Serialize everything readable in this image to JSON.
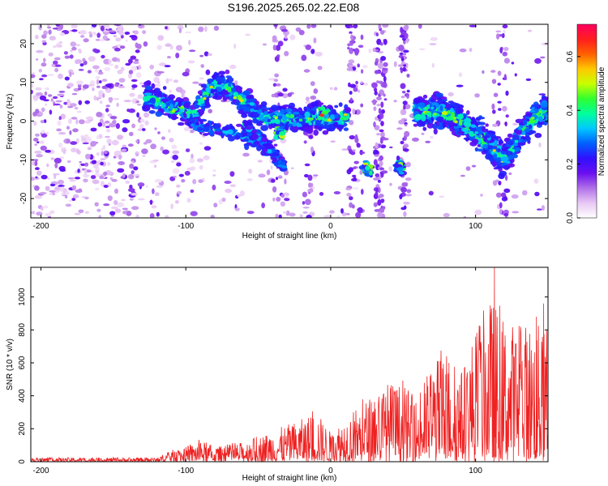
{
  "title": "S196.2025.265.02.22.E08",
  "chart_data": [
    {
      "type": "heatmap",
      "name": "frequency-vs-height",
      "xlabel": "Height of straight line (km)",
      "ylabel": "Frequency (Hz)",
      "xlim": [
        -207,
        150
      ],
      "ylim": [
        -25,
        25
      ],
      "xticks": [
        -200,
        -100,
        0,
        100
      ],
      "yticks": [
        -20,
        -10,
        0,
        10,
        20
      ],
      "colorbar": {
        "label": "Normalized spectral amplitude",
        "range": [
          0,
          0.72
        ],
        "ticks": [
          0.0,
          0.2,
          0.4,
          0.6
        ],
        "colors": [
          "#ffffff",
          "#e8c8f4",
          "#b070e8",
          "#6a0ff0",
          "#3010ff",
          "#0060ff",
          "#00c8ff",
          "#00ff9c",
          "#30ff30",
          "#c8ff00",
          "#ffc800",
          "#ff6000",
          "#ff1e1e",
          "#ff0060"
        ]
      },
      "ridge": [
        [
          -125,
          6
        ],
        [
          -110,
          3.5
        ],
        [
          -95,
          2
        ],
        [
          -85,
          7
        ],
        [
          -80,
          10
        ],
        [
          -70,
          8
        ],
        [
          -60,
          5
        ],
        [
          -50,
          1.5
        ],
        [
          -40,
          0.5
        ],
        [
          -30,
          1
        ],
        [
          -20,
          0
        ],
        [
          -10,
          1
        ],
        [
          0,
          0.5
        ],
        [
          10,
          1
        ],
        [
          60,
          2
        ],
        [
          70,
          2.5
        ],
        [
          80,
          2
        ],
        [
          90,
          0
        ],
        [
          100,
          -3
        ],
        [
          110,
          -6
        ],
        [
          120,
          -10
        ],
        [
          130,
          -4
        ],
        [
          140,
          1
        ],
        [
          148,
          3
        ]
      ],
      "branches": [
        [
          [
            -95,
            -1
          ],
          [
            -80,
            -2
          ],
          [
            -65,
            -3
          ],
          [
            -50,
            -6
          ],
          [
            -35,
            -10
          ]
        ],
        [
          [
            -60,
            -1
          ],
          [
            -50,
            -4
          ],
          [
            -40,
            -8
          ],
          [
            -32,
            -12
          ]
        ]
      ],
      "clusters": [
        {
          "x": 25,
          "y": -12,
          "label": ""
        },
        {
          "x": 48,
          "y": -12,
          "label": ""
        },
        {
          "x": -35,
          "y": -3,
          "label": ""
        },
        {
          "x": -5,
          "y": 2,
          "label": ""
        }
      ]
    },
    {
      "type": "line",
      "name": "snr-vs-height",
      "xlabel": "Height of straight line (km)",
      "ylabel": "SNR (10 * v/v)",
      "xlim": [
        -207,
        150
      ],
      "ylim": [
        0,
        1180
      ],
      "xticks": [
        -200,
        -100,
        0,
        100
      ],
      "yticks": [
        0,
        200,
        400,
        600,
        800,
        1000
      ],
      "envelope": {
        "x": [
          -207,
          -120,
          -110,
          -100,
          -90,
          -80,
          -60,
          -40,
          -20,
          -10,
          0,
          10,
          20,
          30,
          40,
          50,
          60,
          70,
          80,
          90,
          100,
          110,
          120,
          130,
          140,
          150
        ],
        "values": [
          25,
          25,
          70,
          90,
          130,
          90,
          120,
          190,
          260,
          310,
          180,
          280,
          350,
          420,
          490,
          470,
          380,
          620,
          680,
          560,
          820,
          1000,
          880,
          830,
          870,
          780
        ]
      },
      "peaks": [
        {
          "x": 113,
          "y": 1180
        },
        {
          "x": 147,
          "y": 960
        },
        {
          "x": 114,
          "y": 920
        },
        {
          "x": 142,
          "y": 880
        }
      ],
      "color": "#ee2222"
    }
  ]
}
